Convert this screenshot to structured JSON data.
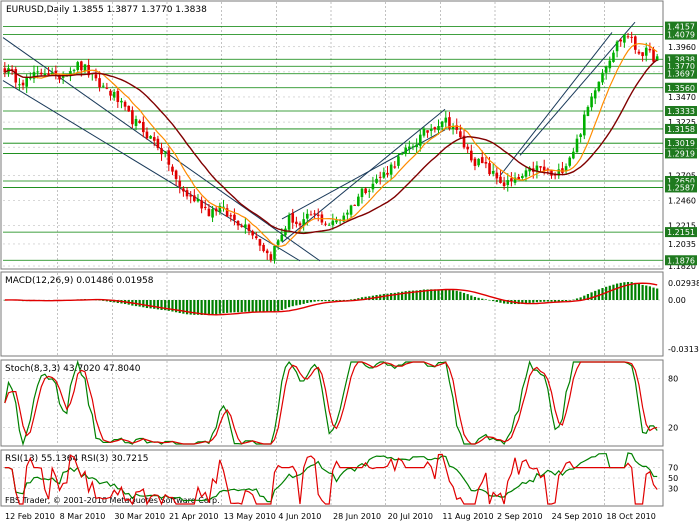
{
  "chart_data": [
    {
      "type": "candlestick",
      "panel": "price",
      "header": "EURUSD,Daily  1.3855 1.3877 1.3770 1.3838",
      "watermark": "FBS Trader, © 2001-2010 MetaQuotes Software Corp.",
      "ylim": [
        1.182,
        1.428
      ],
      "y_ticks": [
        "1.3960",
        "1.3715",
        "1.3470",
        "1.3225",
        "1.2980",
        "1.2705",
        "1.2460",
        "1.2215",
        "1.2035",
        "1.1820"
      ],
      "level_labels": [
        "1.4157",
        "1.4079",
        "1.3838",
        "1.3770",
        "1.3697",
        "1.3560",
        "1.3333",
        "1.3158",
        "1.3019",
        "1.2919",
        "1.2650",
        "1.2587",
        "1.2151",
        "1.1876"
      ],
      "x_labels": [
        "12 Feb 2010",
        "8 Mar 2010",
        "30 Mar 2010",
        "21 Apr 2010",
        "13 May 2010",
        "4 Jun 2010",
        "28 Jun 2010",
        "20 Jul 2010",
        "11 Aug 2010",
        "2 Sep 2010",
        "24 Sep 2010",
        "18 Oct 2010"
      ],
      "approx_close_path": [
        1.375,
        1.366,
        1.362,
        1.368,
        1.373,
        1.365,
        1.372,
        1.378,
        1.374,
        1.36,
        1.355,
        1.345,
        1.33,
        1.32,
        1.31,
        1.3,
        1.285,
        1.26,
        1.25,
        1.245,
        1.235,
        1.24,
        1.23,
        1.225,
        1.22,
        1.205,
        1.19,
        1.21,
        1.23,
        1.22,
        1.232,
        1.228,
        1.222,
        1.23,
        1.24,
        1.255,
        1.262,
        1.27,
        1.28,
        1.29,
        1.3,
        1.31,
        1.318,
        1.326,
        1.318,
        1.3,
        1.285,
        1.28,
        1.27,
        1.262,
        1.264,
        1.27,
        1.278,
        1.275,
        1.268,
        1.282,
        1.3,
        1.33,
        1.36,
        1.38,
        1.398,
        1.41,
        1.392,
        1.39,
        1.384
      ],
      "colors": {
        "bull": "#00b000",
        "bear": "#e00000",
        "ma_fast": "#ff8c00",
        "ma_slow": "#800000",
        "levels": "#008000",
        "channels": "#1a3a5a"
      }
    },
    {
      "type": "bar",
      "panel": "macd",
      "header": "MACD(12,26,9) 0.01486 0.01958",
      "y_ticks": [
        "0.02938",
        "0.00",
        "-0.03132"
      ],
      "ylim": [
        -0.035,
        0.035
      ]
    },
    {
      "type": "line",
      "panel": "stochastic",
      "header": "Stoch(8,3,3) 43.7020 47.8040",
      "y_ticks": [
        "80",
        "20"
      ],
      "ylim": [
        0,
        100
      ]
    },
    {
      "type": "line",
      "panel": "rsi",
      "header": "RSI(13) 55.1364  RSI(3) 30.7215",
      "y_ticks": [
        "70",
        "50",
        "30"
      ],
      "ylim": [
        0,
        100
      ]
    }
  ]
}
